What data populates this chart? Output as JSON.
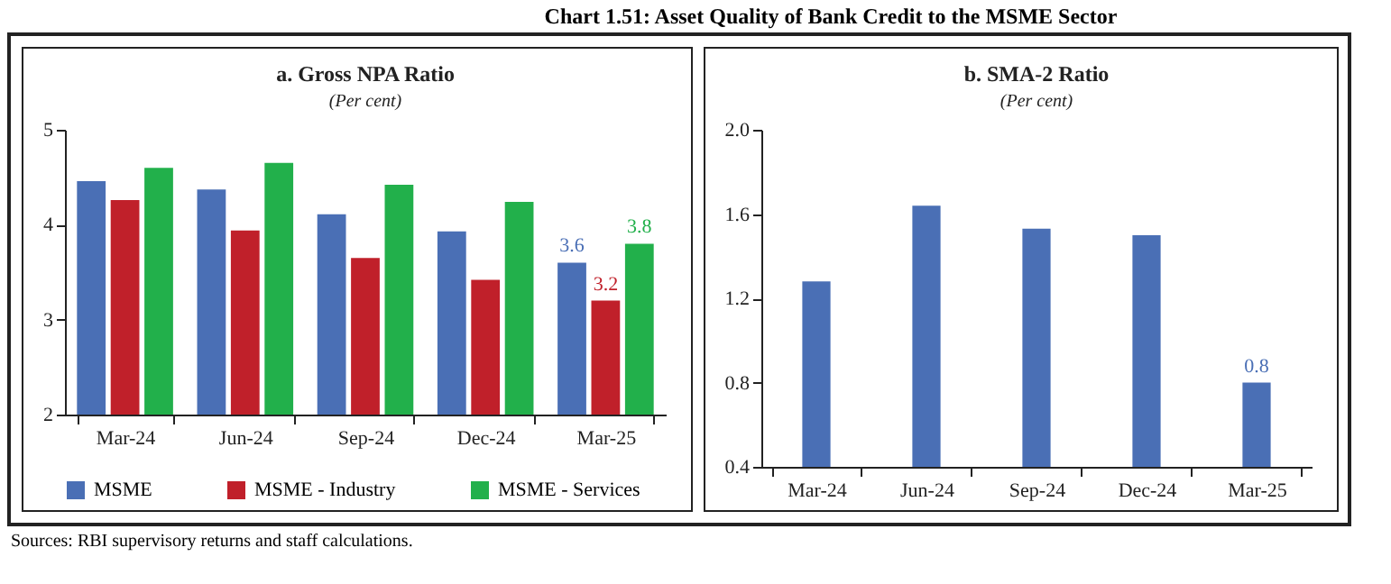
{
  "chart_data": [
    {
      "type": "bar",
      "title": "a. Gross NPA Ratio",
      "subtitle": "(Per cent)",
      "categories": [
        "Mar-24",
        "Jun-24",
        "Sep-24",
        "Dec-24",
        "Mar-25"
      ],
      "series": [
        {
          "name": "MSME",
          "color": "#4a6fb5",
          "values": [
            4.46,
            4.37,
            4.11,
            3.93,
            3.6
          ],
          "value_labels": [
            null,
            null,
            null,
            null,
            "3.6"
          ]
        },
        {
          "name": "MSME - Industry",
          "color": "#c0202a",
          "values": [
            4.26,
            3.94,
            3.65,
            3.42,
            3.2
          ],
          "value_labels": [
            null,
            null,
            null,
            null,
            "3.2"
          ]
        },
        {
          "name": "MSME - Services",
          "color": "#22b04b",
          "values": [
            4.6,
            4.65,
            4.42,
            4.24,
            3.8
          ],
          "value_labels": [
            null,
            null,
            null,
            null,
            "3.8"
          ]
        }
      ],
      "ylim": [
        2,
        5
      ],
      "yticks": [
        2,
        3,
        4,
        5
      ],
      "legend": "bottom",
      "annotations": [
        "Chart 1.51: Asset Quality of Bank Credit to the MSME Sector",
        "Sources: RBI supervisory returns and staff calculations."
      ]
    },
    {
      "type": "bar",
      "title": "b. SMA-2 Ratio",
      "subtitle": "(Per cent)",
      "categories": [
        "Mar-24",
        "Jun-24",
        "Sep-24",
        "Dec-24",
        "Mar-25"
      ],
      "series": [
        {
          "color": "#4a6fb5",
          "values": [
            1.28,
            1.64,
            1.53,
            1.5,
            0.8
          ],
          "value_labels": [
            null,
            null,
            null,
            null,
            "0.8"
          ]
        }
      ],
      "ylim": [
        0.4,
        2.0
      ],
      "yticks": [
        0.4,
        0.8,
        1.2,
        1.6,
        {
          "value": 2.0,
          "label": "2.0"
        }
      ]
    }
  ]
}
